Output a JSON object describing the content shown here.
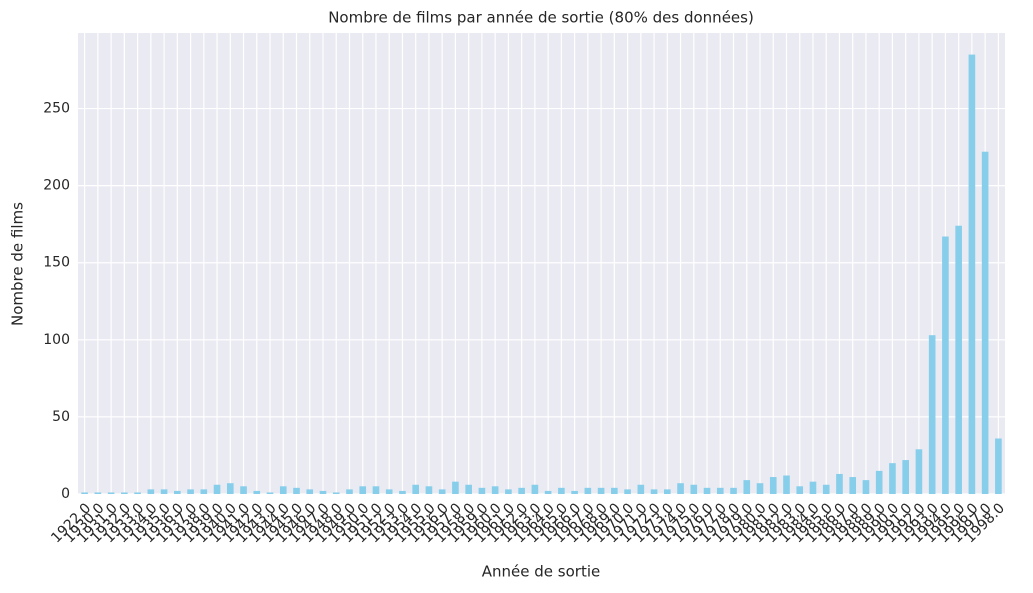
{
  "chart_data": {
    "type": "bar",
    "title": "Nombre de films par année de sortie (80% des données)",
    "xlabel": "Année de sortie",
    "ylabel": "Nombre de films",
    "categories": [
      "1922.0",
      "1930.0",
      "1931.0",
      "1932.0",
      "1933.0",
      "1934.0",
      "1935.0",
      "1936.0",
      "1937.0",
      "1938.0",
      "1939.0",
      "1940.0",
      "1941.0",
      "1942.0",
      "1943.0",
      "1944.0",
      "1945.0",
      "1946.0",
      "1947.0",
      "1948.0",
      "1949.0",
      "1950.0",
      "1951.0",
      "1952.0",
      "1953.0",
      "1954.0",
      "1955.0",
      "1956.0",
      "1957.0",
      "1958.0",
      "1959.0",
      "1960.0",
      "1961.0",
      "1962.0",
      "1963.0",
      "1964.0",
      "1965.0",
      "1966.0",
      "1967.0",
      "1968.0",
      "1969.0",
      "1970.0",
      "1971.0",
      "1972.0",
      "1973.0",
      "1974.0",
      "1975.0",
      "1976.0",
      "1977.0",
      "1978.0",
      "1979.0",
      "1980.0",
      "1981.0",
      "1982.0",
      "1983.0",
      "1984.0",
      "1985.0",
      "1986.0",
      "1987.0",
      "1988.0",
      "1989.0",
      "1990.0",
      "1991.0",
      "1992.0",
      "1993.0",
      "1994.0",
      "1995.0",
      "1996.0",
      "1997.0",
      "1998.0"
    ],
    "values": [
      1,
      1,
      1,
      1,
      1,
      3,
      3,
      2,
      3,
      3,
      6,
      7,
      5,
      2,
      1,
      5,
      4,
      3,
      2,
      1,
      3,
      5,
      5,
      3,
      2,
      6,
      5,
      3,
      8,
      6,
      4,
      5,
      3,
      4,
      6,
      2,
      4,
      2,
      4,
      4,
      4,
      3,
      6,
      3,
      3,
      7,
      6,
      4,
      4,
      4,
      9,
      7,
      11,
      12,
      5,
      8,
      6,
      13,
      11,
      9,
      15,
      20,
      22,
      29,
      103,
      167,
      174,
      285,
      222,
      36
    ],
    "color": "#87ceeb",
    "ylim": [
      0,
      299
    ],
    "yticks": [
      0,
      50,
      100,
      150,
      200,
      250
    ],
    "grid": true
  }
}
